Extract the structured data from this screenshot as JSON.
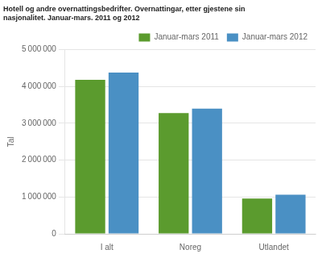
{
  "chart_data": {
    "type": "bar",
    "title": "Hotell og andre overnattingsbedrifter. Overnattingar, etter gjestene sin\nnasjonalitet. Januar-mars. 2011 og 2012",
    "ylabel": "Tal",
    "categories": [
      "I alt",
      "Noreg",
      "Utlandet"
    ],
    "series": [
      {
        "name": "Januar-mars 2011",
        "color": "#5B9B2E",
        "values": [
          4180000,
          3280000,
          960000
        ]
      },
      {
        "name": "Januar-mars 2012",
        "color": "#4A90C4",
        "values": [
          4380000,
          3400000,
          1060000
        ]
      }
    ],
    "ylim": [
      0,
      5000000
    ],
    "yticks": [
      0,
      {
        "value": 1000000,
        "label": "1 000 000"
      },
      {
        "value": 2000000,
        "label": "2 000 000"
      },
      {
        "value": 3000000,
        "label": "3 000 000"
      },
      {
        "value": 4000000,
        "label": "4 000 000"
      },
      {
        "value": 5000000,
        "label": "5 000 000"
      }
    ],
    "grid": true,
    "legend": "upper right"
  }
}
